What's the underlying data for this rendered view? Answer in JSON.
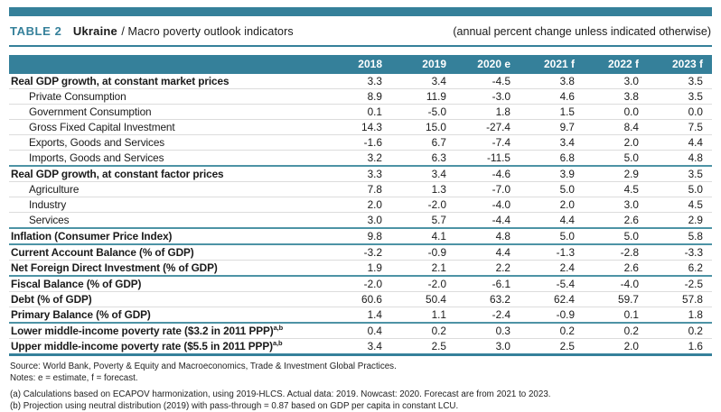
{
  "header": {
    "table_label": "TABLE 2",
    "country": "Ukraine",
    "slash_subtitle": "/ Macro poverty outlook indicators",
    "right_note": "(annual percent change unless indicated otherwise)"
  },
  "colors": {
    "teal_accent": "#35809A",
    "row_separator": "#DCDCDC",
    "header_text": "#FFFFFF"
  },
  "columns": [
    "2018",
    "2019",
    "2020 e",
    "2021 f",
    "2022 f",
    "2023 f"
  ],
  "rows": [
    {
      "label": "Real GDP growth, at constant market prices",
      "bold": true,
      "indent": false,
      "section_start": false,
      "values": [
        "3.3",
        "3.4",
        "-4.5",
        "3.8",
        "3.0",
        "3.5"
      ]
    },
    {
      "label": "Private Consumption",
      "bold": false,
      "indent": true,
      "section_start": false,
      "values": [
        "8.9",
        "11.9",
        "-3.0",
        "4.6",
        "3.8",
        "3.5"
      ]
    },
    {
      "label": "Government Consumption",
      "bold": false,
      "indent": true,
      "section_start": false,
      "values": [
        "0.1",
        "-5.0",
        "1.8",
        "1.5",
        "0.0",
        "0.0"
      ]
    },
    {
      "label": "Gross Fixed Capital Investment",
      "bold": false,
      "indent": true,
      "section_start": false,
      "values": [
        "14.3",
        "15.0",
        "-27.4",
        "9.7",
        "8.4",
        "7.5"
      ]
    },
    {
      "label": "Exports, Goods and Services",
      "bold": false,
      "indent": true,
      "section_start": false,
      "values": [
        "-1.6",
        "6.7",
        "-7.4",
        "3.4",
        "2.0",
        "4.4"
      ]
    },
    {
      "label": "Imports, Goods and Services",
      "bold": false,
      "indent": true,
      "section_start": false,
      "values": [
        "3.2",
        "6.3",
        "-11.5",
        "6.8",
        "5.0",
        "4.8"
      ]
    },
    {
      "label": "Real GDP growth, at constant factor prices",
      "bold": true,
      "indent": false,
      "section_start": true,
      "values": [
        "3.3",
        "3.4",
        "-4.6",
        "3.9",
        "2.9",
        "3.5"
      ]
    },
    {
      "label": "Agriculture",
      "bold": false,
      "indent": true,
      "section_start": false,
      "values": [
        "7.8",
        "1.3",
        "-7.0",
        "5.0",
        "4.5",
        "5.0"
      ]
    },
    {
      "label": "Industry",
      "bold": false,
      "indent": true,
      "section_start": false,
      "values": [
        "2.0",
        "-2.0",
        "-4.0",
        "2.0",
        "3.0",
        "4.5"
      ]
    },
    {
      "label": "Services",
      "bold": false,
      "indent": true,
      "section_start": false,
      "values": [
        "3.0",
        "5.7",
        "-4.4",
        "4.4",
        "2.6",
        "2.9"
      ]
    },
    {
      "label": "Inflation (Consumer Price Index)",
      "bold": true,
      "indent": false,
      "section_start": true,
      "values": [
        "9.8",
        "4.1",
        "4.8",
        "5.0",
        "5.0",
        "5.8"
      ]
    },
    {
      "label": "Current Account Balance (% of GDP)",
      "bold": true,
      "indent": false,
      "section_start": true,
      "values": [
        "-3.2",
        "-0.9",
        "4.4",
        "-1.3",
        "-2.8",
        "-3.3"
      ]
    },
    {
      "label": "Net Foreign Direct Investment (% of GDP)",
      "bold": true,
      "indent": false,
      "section_start": false,
      "values": [
        "1.9",
        "2.1",
        "2.2",
        "2.4",
        "2.6",
        "6.2"
      ]
    },
    {
      "label": "Fiscal Balance (% of GDP)",
      "bold": true,
      "indent": false,
      "section_start": true,
      "values": [
        "-2.0",
        "-2.0",
        "-6.1",
        "-5.4",
        "-4.0",
        "-2.5"
      ]
    },
    {
      "label": "Debt (% of GDP)",
      "bold": true,
      "indent": false,
      "section_start": false,
      "values": [
        "60.6",
        "50.4",
        "63.2",
        "62.4",
        "59.7",
        "57.8"
      ]
    },
    {
      "label": "Primary Balance (% of GDP)",
      "bold": true,
      "indent": false,
      "section_start": false,
      "values": [
        "1.4",
        "1.1",
        "-2.4",
        "-0.9",
        "0.1",
        "1.8"
      ]
    },
    {
      "label": "Lower middle-income poverty rate ($3.2 in 2011 PPP)",
      "sup": "a,b",
      "bold": true,
      "indent": false,
      "section_start": true,
      "values": [
        "0.4",
        "0.2",
        "0.3",
        "0.2",
        "0.2",
        "0.2"
      ]
    },
    {
      "label": "Upper middle-income poverty rate ($5.5 in 2011 PPP)",
      "sup": "a,b",
      "bold": true,
      "indent": false,
      "section_start": false,
      "values": [
        "3.4",
        "2.5",
        "3.0",
        "2.5",
        "2.0",
        "1.6"
      ]
    }
  ],
  "footnotes": {
    "source": "Source: World Bank, Poverty & Equity and Macroeconomics, Trade & Investment Global Practices.",
    "notes": "Notes: e = estimate, f = forecast.",
    "a": "(a) Calculations based on ECAPOV harmonization, using 2019-HLCS. Actual data: 2019. Nowcast: 2020. Forecast are from 2021 to 2023.",
    "b": "(b) Projection using neutral distribution (2019) with pass-through = 0.87 based on GDP per capita in constant LCU."
  }
}
